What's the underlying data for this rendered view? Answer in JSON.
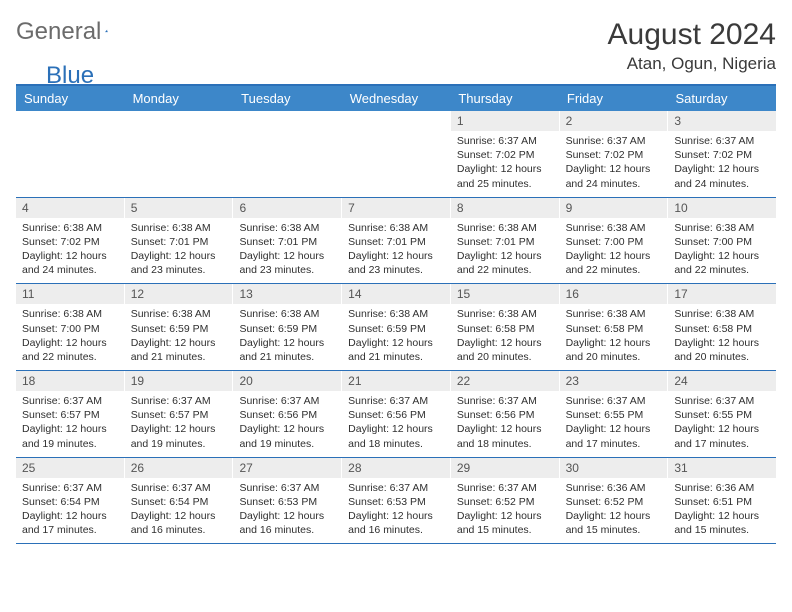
{
  "brand": {
    "word1": "General",
    "word2": "Blue"
  },
  "title": "August 2024",
  "location": "Atan, Ogun, Nigeria",
  "colors": {
    "header_bg": "#3d87c9",
    "border": "#2b70b8",
    "daynum_bg": "#ededed",
    "text": "#2f2f2f",
    "logo_gray": "#6b6b6b",
    "logo_blue": "#2b70b8"
  },
  "dow": [
    "Sunday",
    "Monday",
    "Tuesday",
    "Wednesday",
    "Thursday",
    "Friday",
    "Saturday"
  ],
  "weeks": [
    [
      {
        "n": "",
        "sr": "",
        "ss": "",
        "dl": ""
      },
      {
        "n": "",
        "sr": "",
        "ss": "",
        "dl": ""
      },
      {
        "n": "",
        "sr": "",
        "ss": "",
        "dl": ""
      },
      {
        "n": "",
        "sr": "",
        "ss": "",
        "dl": ""
      },
      {
        "n": "1",
        "sr": "6:37 AM",
        "ss": "7:02 PM",
        "dl": "12 hours and 25 minutes."
      },
      {
        "n": "2",
        "sr": "6:37 AM",
        "ss": "7:02 PM",
        "dl": "12 hours and 24 minutes."
      },
      {
        "n": "3",
        "sr": "6:37 AM",
        "ss": "7:02 PM",
        "dl": "12 hours and 24 minutes."
      }
    ],
    [
      {
        "n": "4",
        "sr": "6:38 AM",
        "ss": "7:02 PM",
        "dl": "12 hours and 24 minutes."
      },
      {
        "n": "5",
        "sr": "6:38 AM",
        "ss": "7:01 PM",
        "dl": "12 hours and 23 minutes."
      },
      {
        "n": "6",
        "sr": "6:38 AM",
        "ss": "7:01 PM",
        "dl": "12 hours and 23 minutes."
      },
      {
        "n": "7",
        "sr": "6:38 AM",
        "ss": "7:01 PM",
        "dl": "12 hours and 23 minutes."
      },
      {
        "n": "8",
        "sr": "6:38 AM",
        "ss": "7:01 PM",
        "dl": "12 hours and 22 minutes."
      },
      {
        "n": "9",
        "sr": "6:38 AM",
        "ss": "7:00 PM",
        "dl": "12 hours and 22 minutes."
      },
      {
        "n": "10",
        "sr": "6:38 AM",
        "ss": "7:00 PM",
        "dl": "12 hours and 22 minutes."
      }
    ],
    [
      {
        "n": "11",
        "sr": "6:38 AM",
        "ss": "7:00 PM",
        "dl": "12 hours and 22 minutes."
      },
      {
        "n": "12",
        "sr": "6:38 AM",
        "ss": "6:59 PM",
        "dl": "12 hours and 21 minutes."
      },
      {
        "n": "13",
        "sr": "6:38 AM",
        "ss": "6:59 PM",
        "dl": "12 hours and 21 minutes."
      },
      {
        "n": "14",
        "sr": "6:38 AM",
        "ss": "6:59 PM",
        "dl": "12 hours and 21 minutes."
      },
      {
        "n": "15",
        "sr": "6:38 AM",
        "ss": "6:58 PM",
        "dl": "12 hours and 20 minutes."
      },
      {
        "n": "16",
        "sr": "6:38 AM",
        "ss": "6:58 PM",
        "dl": "12 hours and 20 minutes."
      },
      {
        "n": "17",
        "sr": "6:38 AM",
        "ss": "6:58 PM",
        "dl": "12 hours and 20 minutes."
      }
    ],
    [
      {
        "n": "18",
        "sr": "6:37 AM",
        "ss": "6:57 PM",
        "dl": "12 hours and 19 minutes."
      },
      {
        "n": "19",
        "sr": "6:37 AM",
        "ss": "6:57 PM",
        "dl": "12 hours and 19 minutes."
      },
      {
        "n": "20",
        "sr": "6:37 AM",
        "ss": "6:56 PM",
        "dl": "12 hours and 19 minutes."
      },
      {
        "n": "21",
        "sr": "6:37 AM",
        "ss": "6:56 PM",
        "dl": "12 hours and 18 minutes."
      },
      {
        "n": "22",
        "sr": "6:37 AM",
        "ss": "6:56 PM",
        "dl": "12 hours and 18 minutes."
      },
      {
        "n": "23",
        "sr": "6:37 AM",
        "ss": "6:55 PM",
        "dl": "12 hours and 17 minutes."
      },
      {
        "n": "24",
        "sr": "6:37 AM",
        "ss": "6:55 PM",
        "dl": "12 hours and 17 minutes."
      }
    ],
    [
      {
        "n": "25",
        "sr": "6:37 AM",
        "ss": "6:54 PM",
        "dl": "12 hours and 17 minutes."
      },
      {
        "n": "26",
        "sr": "6:37 AM",
        "ss": "6:54 PM",
        "dl": "12 hours and 16 minutes."
      },
      {
        "n": "27",
        "sr": "6:37 AM",
        "ss": "6:53 PM",
        "dl": "12 hours and 16 minutes."
      },
      {
        "n": "28",
        "sr": "6:37 AM",
        "ss": "6:53 PM",
        "dl": "12 hours and 16 minutes."
      },
      {
        "n": "29",
        "sr": "6:37 AM",
        "ss": "6:52 PM",
        "dl": "12 hours and 15 minutes."
      },
      {
        "n": "30",
        "sr": "6:36 AM",
        "ss": "6:52 PM",
        "dl": "12 hours and 15 minutes."
      },
      {
        "n": "31",
        "sr": "6:36 AM",
        "ss": "6:51 PM",
        "dl": "12 hours and 15 minutes."
      }
    ]
  ],
  "labels": {
    "sunrise": "Sunrise:",
    "sunset": "Sunset:",
    "daylight": "Daylight:"
  }
}
